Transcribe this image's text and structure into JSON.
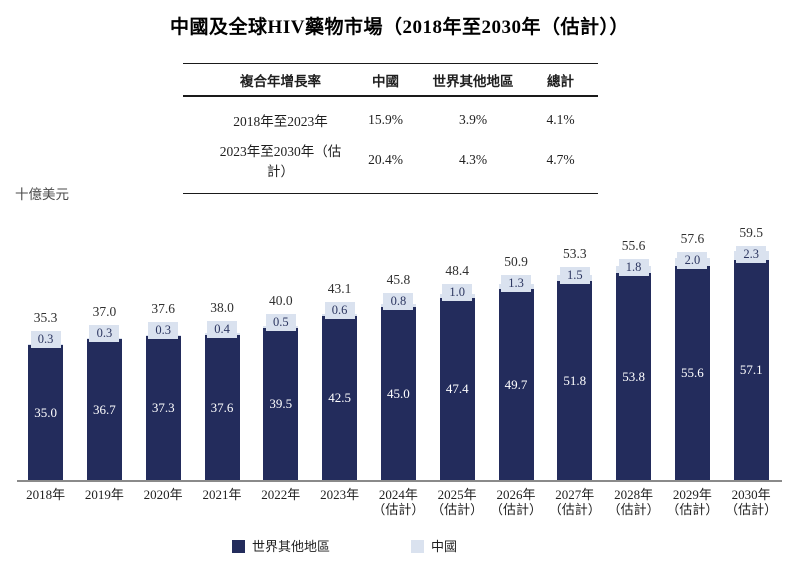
{
  "title": "中國及全球HIV藥物市場（2018年至2030年（估計））",
  "unit_label": "十億美元",
  "table": {
    "headers": [
      "複合年增長率",
      "中國",
      "世界其他地區",
      "總計"
    ],
    "rows": [
      {
        "label": "2018年至2023年",
        "china": "15.9%",
        "rest_of_world": "3.9%",
        "total": "4.1%"
      },
      {
        "label": "2023年至2030年（估計）",
        "china": "20.4%",
        "rest_of_world": "4.3%",
        "total": "4.7%"
      }
    ]
  },
  "legend": [
    {
      "label": "世界其他地區",
      "color": "#232c5c"
    },
    {
      "label": "中國",
      "color": "#dae2ef"
    }
  ],
  "chart_data": {
    "type": "bar",
    "stacked": true,
    "title": "中國及全球HIV藥物市場（2018年至2030年（估計））",
    "ylabel": "十億美元",
    "ylim": [
      0,
      62
    ],
    "grid": false,
    "legend_position": "bottom",
    "categories": [
      "2018年",
      "2019年",
      "2020年",
      "2021年",
      "2022年",
      "2023年",
      "2024年",
      "2025年",
      "2026年",
      "2027年",
      "2028年",
      "2029年",
      "2030年"
    ],
    "estimate_suffix": "（估計）",
    "estimate_start_index": 6,
    "series": [
      {
        "name": "世界其他地區",
        "color": "#232c5c",
        "values": [
          35.0,
          36.7,
          37.3,
          37.6,
          39.5,
          42.5,
          45.0,
          47.4,
          49.7,
          51.8,
          53.8,
          55.6,
          57.1
        ],
        "labels": [
          "35.0",
          "36.7",
          "37.3",
          "37.6",
          "39.5",
          "42.5",
          "45.0",
          "47.4",
          "49.7",
          "51.8",
          "53.8",
          "55.6",
          "57.1"
        ]
      },
      {
        "name": "中國",
        "color": "#dae2ef",
        "values": [
          0.3,
          0.3,
          0.3,
          0.4,
          0.5,
          0.6,
          0.8,
          1.0,
          1.3,
          1.5,
          1.8,
          2.0,
          2.3
        ],
        "labels": [
          "0.3",
          "0.3",
          "0.3",
          "0.4",
          "0.5",
          "0.6",
          "0.8",
          "1.0",
          "1.3",
          "1.5",
          "1.8",
          "2.0",
          "2.3"
        ]
      }
    ],
    "totals": [
      35.3,
      37.0,
      37.6,
      38.0,
      40.0,
      43.1,
      45.8,
      48.4,
      50.9,
      53.3,
      55.6,
      57.6,
      59.5
    ],
    "totals_labels": [
      "35.3",
      "37.0",
      "37.6",
      "38.0",
      "40.0",
      "43.1",
      "45.8",
      "48.4",
      "50.9",
      "53.3",
      "55.6",
      "57.6",
      "59.5"
    ]
  }
}
